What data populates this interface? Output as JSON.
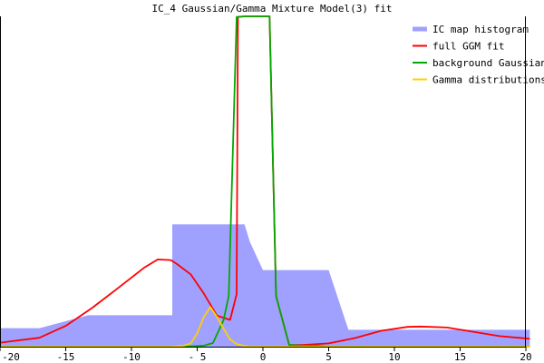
{
  "chart_data": {
    "type": "area",
    "title": "IC_4 Gaussian/Gamma Mixture Model(3) fit",
    "xlabel": "",
    "ylabel": "",
    "xlim": [
      -20,
      20
    ],
    "ylim": [
      0,
      1
    ],
    "x_ticks": [
      -20,
      -15,
      -10,
      -5,
      0,
      5,
      10,
      15,
      20
    ],
    "x_tick_labels": [
      "-20",
      "-15",
      "-10",
      "- 5",
      "0",
      "5",
      "10",
      "15",
      "20"
    ],
    "grid": false,
    "legend_position": "top-right",
    "series": [
      {
        "name": "IC map histogram",
        "kind": "area",
        "color": "#a0a0ff",
        "x": [
          -20.2,
          -17,
          -17,
          -13.3,
          -13.3,
          -6.9,
          -6.9,
          -3.6,
          -3.6,
          -3.3,
          -2.5,
          -1.4,
          -1.0,
          0.0,
          1.0,
          3.0,
          5.0,
          6.5,
          20.3
        ],
        "y": [
          0.056,
          0.056,
          0.056,
          0.095,
          0.095,
          0.095,
          0.37,
          0.37,
          0.37,
          0.37,
          0.37,
          0.37,
          0.318,
          0.232,
          0.232,
          0.232,
          0.232,
          0.051,
          0.051
        ]
      },
      {
        "name": "full GGM fit",
        "kind": "line",
        "color": "#ff0000",
        "x": [
          -20.2,
          -17,
          -15,
          -13,
          -11,
          -9,
          -8,
          -7,
          -6.5,
          -5.5,
          -4.5,
          -3.5,
          -2.5,
          -2.0,
          -1.9,
          -1.4,
          -0.5,
          0.5,
          1.0,
          2.0,
          3.0,
          5.0,
          7.0,
          9.0,
          11.0,
          12.0,
          14.0,
          16.0,
          18.0,
          20.3
        ],
        "y": [
          0.011,
          0.027,
          0.063,
          0.117,
          0.178,
          0.24,
          0.264,
          0.262,
          0.249,
          0.219,
          0.161,
          0.094,
          0.081,
          0.159,
          0.998,
          1.0,
          1.0,
          1.0,
          0.153,
          0.005,
          0.005,
          0.01,
          0.026,
          0.048,
          0.06,
          0.061,
          0.058,
          0.045,
          0.032,
          0.024
        ]
      },
      {
        "name": "background Gaussian",
        "kind": "line",
        "color": "#00aa00",
        "x": [
          -20.2,
          -6,
          -4.5,
          -3.8,
          -3.0,
          -2.6,
          -2.0,
          -1.9,
          -1.4,
          -0.5,
          0.5,
          1.0,
          2.0,
          3.0,
          4.0,
          5.0,
          20.3
        ],
        "y": [
          0.0,
          0.0,
          0.003,
          0.011,
          0.08,
          0.153,
          0.998,
          0.998,
          1.0,
          1.0,
          1.0,
          0.153,
          0.005,
          0.003,
          0.003,
          0.0,
          0.0
        ]
      },
      {
        "name": "Gamma distributions",
        "kind": "line",
        "color": "#ffd000",
        "x": [
          -20.2,
          -8,
          -7,
          -6,
          -5.5,
          -5,
          -4.5,
          -4,
          -3.5,
          -3,
          -2.5,
          -2,
          -1.5,
          -1,
          0,
          1,
          3,
          5,
          20.3
        ],
        "y": [
          0.0,
          0.0,
          0.0,
          0.003,
          0.01,
          0.04,
          0.09,
          0.12,
          0.09,
          0.055,
          0.022,
          0.008,
          0.003,
          0.0,
          0.0,
          0.0,
          0.0,
          0.0,
          0.0
        ]
      }
    ]
  }
}
